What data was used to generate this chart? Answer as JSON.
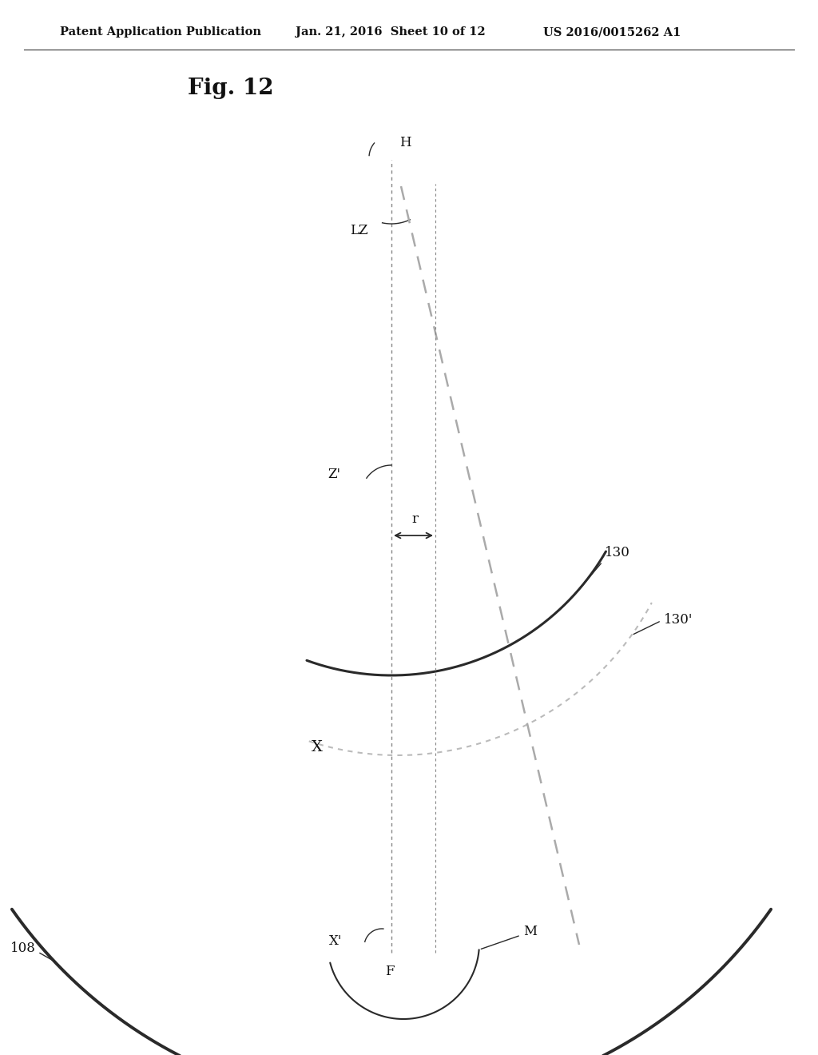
{
  "header_left": "Patent Application Publication",
  "header_mid": "Jan. 21, 2016  Sheet 10 of 12",
  "header_right": "US 2016/0015262 A1",
  "fig_label": "Fig. 12",
  "bg_color": "#ffffff",
  "line_color": "#2a2a2a",
  "dashed_color": "#999999",
  "label_fontsize": 12,
  "header_fontsize": 10.5,
  "fig_label_fontsize": 20
}
